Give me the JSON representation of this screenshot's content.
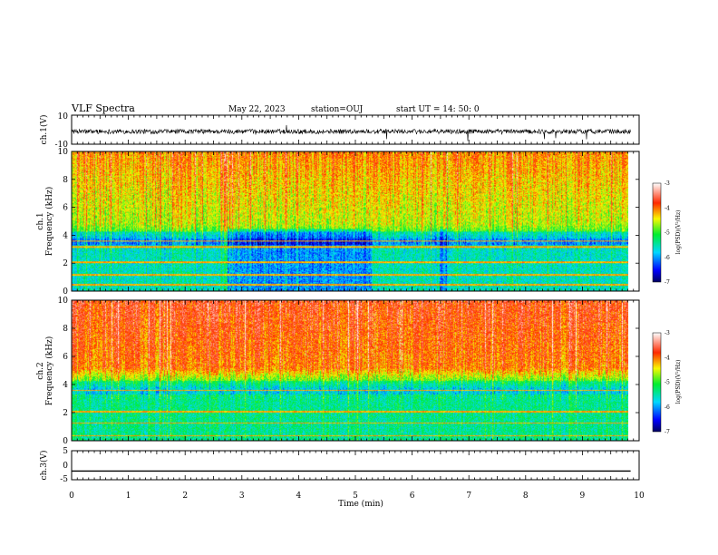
{
  "header": {
    "title": "VLF Spectra",
    "date": "May 22, 2023",
    "station": "station=OUJ",
    "start": "start  UT =   14: 50: 0"
  },
  "chart_data": [
    {
      "type": "line",
      "panel": "ch1-waveform",
      "ylabel": "ch.1(V)",
      "ylim": [
        -10,
        10
      ],
      "yticks": [
        "10",
        "-10"
      ],
      "xlim": [
        0,
        10
      ],
      "series": [
        {
          "values": "noise waveform, ~3 V amplitude around 0 V"
        }
      ]
    },
    {
      "type": "heatmap",
      "panel": "ch1-spectrogram",
      "ylabel": "ch.1\nFrequency (kHz)",
      "ylim": [
        0,
        10
      ],
      "yticks": [
        "0",
        "2",
        "4",
        "6",
        "8",
        "10"
      ],
      "xlim": [
        0,
        9.85
      ],
      "colorbar": {
        "label": "log(PSD)(V²/Hz)",
        "range": [
          -7,
          -3
        ],
        "ticks": [
          "-3",
          "-4",
          "-5",
          "-6",
          "-7"
        ]
      },
      "lines_khz": [
        0.5,
        1.2,
        2.1,
        3.2,
        3.6
      ],
      "quiet_intervals_min": [
        [
          2.75,
          5.3
        ],
        [
          6.5,
          6.65
        ]
      ]
    },
    {
      "type": "heatmap",
      "panel": "ch2-spectrogram",
      "ylabel": "ch.2\nFrequency (kHz)",
      "ylim": [
        0,
        10
      ],
      "yticks": [
        "0",
        "2",
        "4",
        "6",
        "8",
        "10"
      ],
      "xlim": [
        0,
        9.85
      ],
      "colorbar": {
        "label": "log(PSD)(V²/Hz)",
        "range": [
          -7,
          -3
        ],
        "ticks": [
          "-3",
          "-4",
          "-5",
          "-6",
          "-7"
        ]
      },
      "lines_khz": [
        0.4,
        1.3,
        2.1,
        3.6
      ]
    },
    {
      "type": "line",
      "panel": "ch3-waveform",
      "ylabel": "ch.3(V)",
      "ylim": [
        -5,
        5
      ],
      "yticks": [
        "5",
        "0",
        "-5"
      ],
      "xlim": [
        0,
        10
      ],
      "series": [
        {
          "x": [
            0,
            9.85
          ],
          "values": [
            -2,
            -2
          ]
        }
      ]
    }
  ],
  "xaxis": {
    "label": "Time (min)",
    "range": [
      0,
      10
    ],
    "ticks": [
      "0",
      "1",
      "2",
      "3",
      "4",
      "5",
      "6",
      "7",
      "8",
      "9",
      "10"
    ]
  }
}
